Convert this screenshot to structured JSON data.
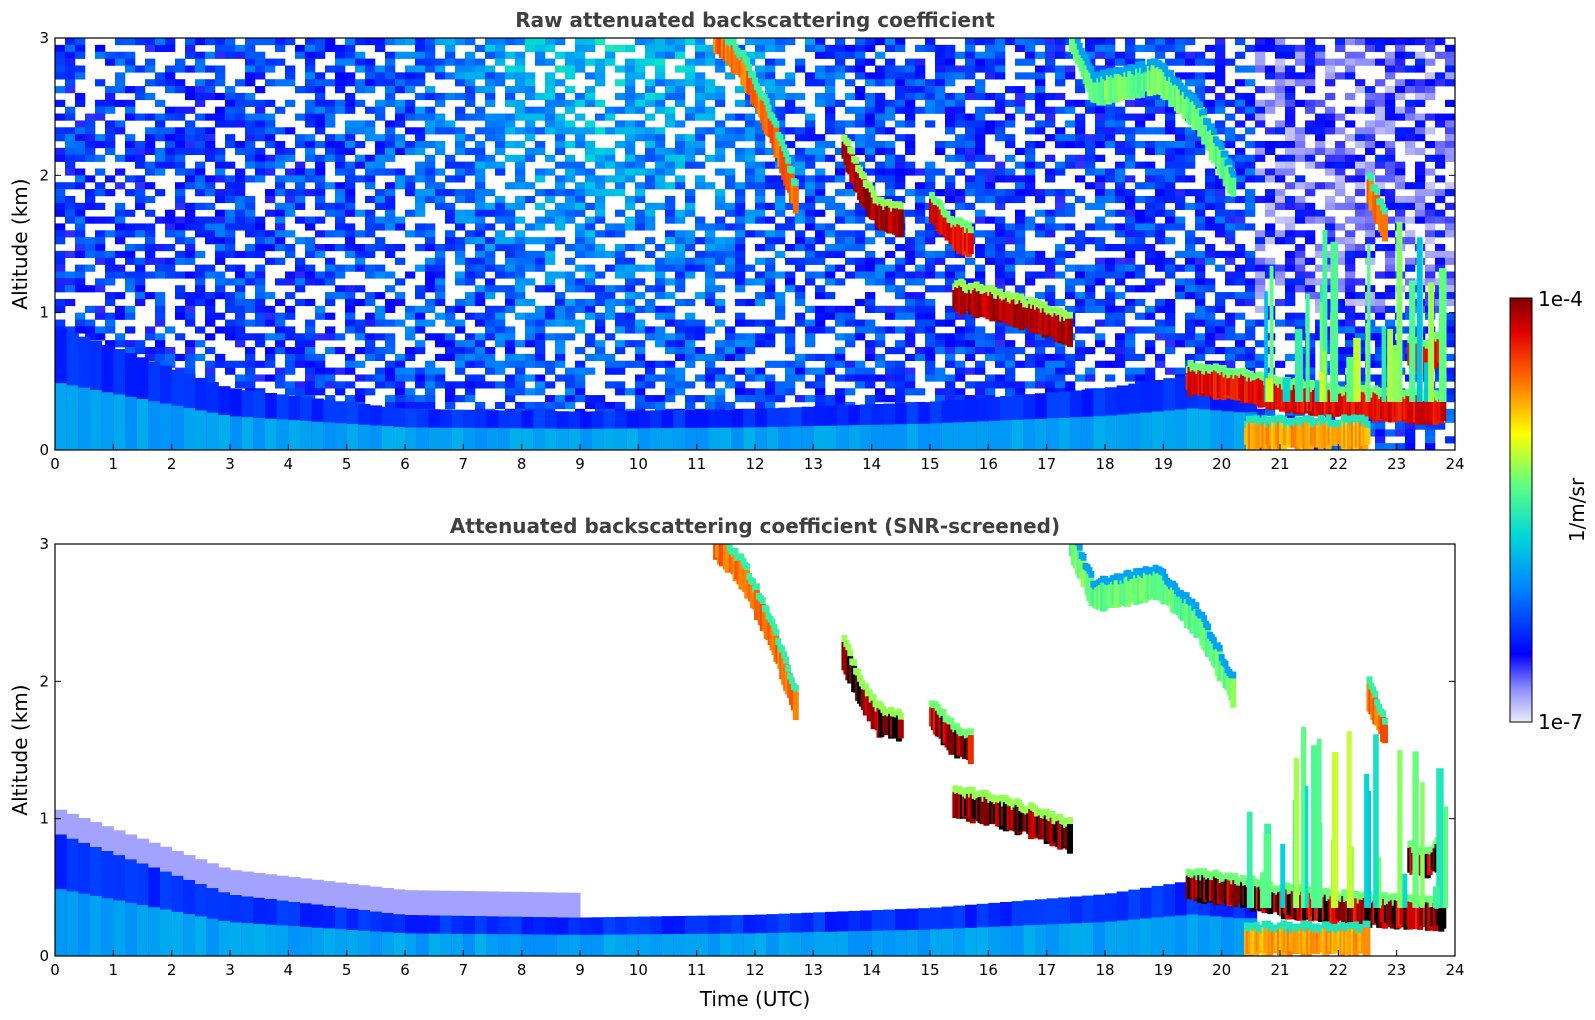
{
  "chart_data": [
    {
      "type": "heatmap",
      "title": "Raw attenuated backscattering coefficient",
      "xlabel": "",
      "ylabel": "Altitude (km)",
      "xlim": [
        0,
        24
      ],
      "ylim": [
        0,
        3
      ],
      "x_ticks": [
        "0",
        "1",
        "2",
        "3",
        "4",
        "5",
        "6",
        "7",
        "8",
        "9",
        "10",
        "11",
        "12",
        "13",
        "14",
        "15",
        "16",
        "17",
        "18",
        "19",
        "20",
        "21",
        "22",
        "23",
        "24"
      ],
      "y_ticks": [
        "0",
        "1",
        "2",
        "3"
      ],
      "features": [
        {
          "kind": "boundary-layer",
          "time": [
            0,
            3,
            6,
            9,
            12,
            15,
            18,
            19.5,
            20.3
          ],
          "top_km": [
            0.9,
            0.45,
            0.3,
            0.28,
            0.3,
            0.35,
            0.45,
            0.55,
            0.5
          ],
          "level": 0.35
        },
        {
          "kind": "cloud",
          "time": [
            11.3,
            11.8,
            12.3,
            12.7
          ],
          "alt_km": [
            3.0,
            2.75,
            2.3,
            1.8
          ],
          "level": 0.85
        },
        {
          "kind": "cloud",
          "time": [
            13.5,
            13.8,
            14.1,
            14.5
          ],
          "alt_km": [
            2.2,
            1.9,
            1.7,
            1.65
          ],
          "level": 1.0
        },
        {
          "kind": "cloud",
          "time": [
            15.0,
            15.4,
            15.7
          ],
          "alt_km": [
            1.75,
            1.55,
            1.5
          ],
          "level": 0.95
        },
        {
          "kind": "cloud",
          "time": [
            15.4,
            16.0,
            16.8,
            17.4
          ],
          "alt_km": [
            1.1,
            1.05,
            0.95,
            0.85
          ],
          "level": 1.0
        },
        {
          "kind": "cloud",
          "time": [
            17.4,
            17.8,
            18.9,
            19.6,
            20.2
          ],
          "alt_km": [
            3.0,
            2.6,
            2.7,
            2.4,
            1.9
          ],
          "level": 0.6
        },
        {
          "kind": "cloud",
          "time": [
            19.4,
            20.3,
            21.0,
            22.0,
            23.0,
            23.8
          ],
          "alt_km": [
            0.5,
            0.45,
            0.38,
            0.33,
            0.3,
            0.28
          ],
          "level": 0.95
        },
        {
          "kind": "cloud",
          "time": [
            20.4,
            21.5,
            22.5
          ],
          "alt_km": [
            0.1,
            0.1,
            0.1
          ],
          "level": 0.8
        },
        {
          "kind": "cloud",
          "time": [
            22.5,
            22.8
          ],
          "alt_km": [
            1.9,
            1.6
          ],
          "level": 0.85
        },
        {
          "kind": "cloud",
          "time": [
            23.2,
            23.5,
            23.8
          ],
          "alt_km": [
            0.7,
            0.65,
            0.75
          ],
          "level": 0.95
        }
      ]
    },
    {
      "type": "heatmap",
      "title": "Attenuated backscattering coefficient (SNR-screened)",
      "xlabel": "Time (UTC)",
      "ylabel": "Altitude (km)",
      "xlim": [
        0,
        24
      ],
      "ylim": [
        0,
        3
      ],
      "x_ticks": [
        "0",
        "1",
        "2",
        "3",
        "4",
        "5",
        "6",
        "7",
        "8",
        "9",
        "10",
        "11",
        "12",
        "13",
        "14",
        "15",
        "16",
        "17",
        "18",
        "19",
        "20",
        "21",
        "22",
        "23",
        "24"
      ],
      "y_ticks": [
        "0",
        "1",
        "2",
        "3"
      ],
      "screened": true
    }
  ],
  "colorbar": {
    "label": "1/m/sr",
    "max_label": "1e-4",
    "min_label": "1e-7",
    "scale": "log",
    "colormap": "jet",
    "low_color": "#e8e8f8",
    "high_color": "#800000"
  }
}
